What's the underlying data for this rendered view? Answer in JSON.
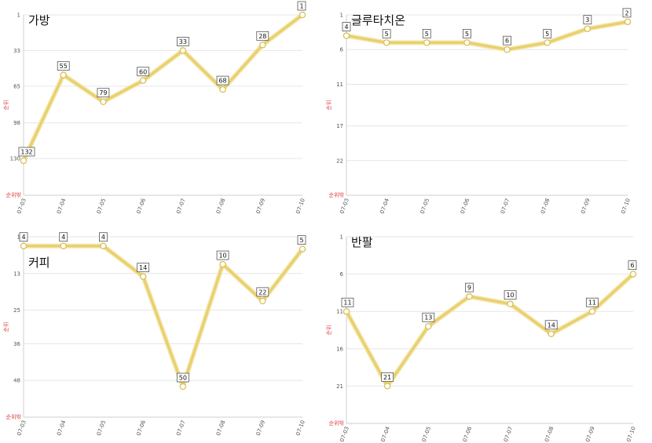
{
  "chart_data": [
    {
      "type": "line",
      "title": "가방",
      "ylabel": "순위",
      "y_footer": "순위밖",
      "y_reversed": true,
      "y_ticks": [
        1,
        33,
        65,
        98,
        130
      ],
      "ylim": [
        1,
        163
      ],
      "categories": [
        "07-03",
        "07-04",
        "07-05",
        "07-06",
        "07-07",
        "07-08",
        "07-09",
        "07-10"
      ],
      "values": [
        132,
        55,
        79,
        60,
        33,
        68,
        28,
        1
      ],
      "line_color": "#e8cf6e",
      "grid": true
    },
    {
      "type": "line",
      "title": "글루타치온",
      "ylabel": "순위",
      "y_footer": "순위밖",
      "y_reversed": true,
      "y_ticks": [
        1,
        6,
        11,
        17,
        22
      ],
      "ylim": [
        1,
        27
      ],
      "categories": [
        "07-03",
        "07-04",
        "07-05",
        "07-06",
        "07-07",
        "07-08",
        "07-09",
        "07-10"
      ],
      "values": [
        4,
        5,
        5,
        5,
        6,
        5,
        3,
        2
      ],
      "line_color": "#e8cf6e",
      "grid": true
    },
    {
      "type": "line",
      "title": "커피",
      "ylabel": "순위",
      "y_footer": "순위밖",
      "y_reversed": true,
      "y_ticks": [
        1,
        13,
        25,
        36,
        48
      ],
      "ylim": [
        1,
        60
      ],
      "categories": [
        "07-03",
        "07-04",
        "07-05",
        "07-06",
        "07-07",
        "07-08",
        "07-09",
        "07-10"
      ],
      "values": [
        4,
        4,
        4,
        14,
        50,
        10,
        22,
        5
      ],
      "line_color": "#e8cf6e",
      "grid": true
    },
    {
      "type": "line",
      "title": "반팔",
      "ylabel": "순위",
      "y_footer": "순위밖",
      "y_reversed": true,
      "y_ticks": [
        1,
        6,
        11,
        16,
        21
      ],
      "ylim": [
        1,
        26
      ],
      "categories": [
        "07-03",
        "07-04",
        "07-05",
        "07-06",
        "07-07",
        "07-08",
        "07-09",
        "07-10"
      ],
      "values": [
        11,
        21,
        13,
        9,
        10,
        14,
        11,
        6
      ],
      "line_color": "#e8cf6e",
      "grid": true
    }
  ]
}
